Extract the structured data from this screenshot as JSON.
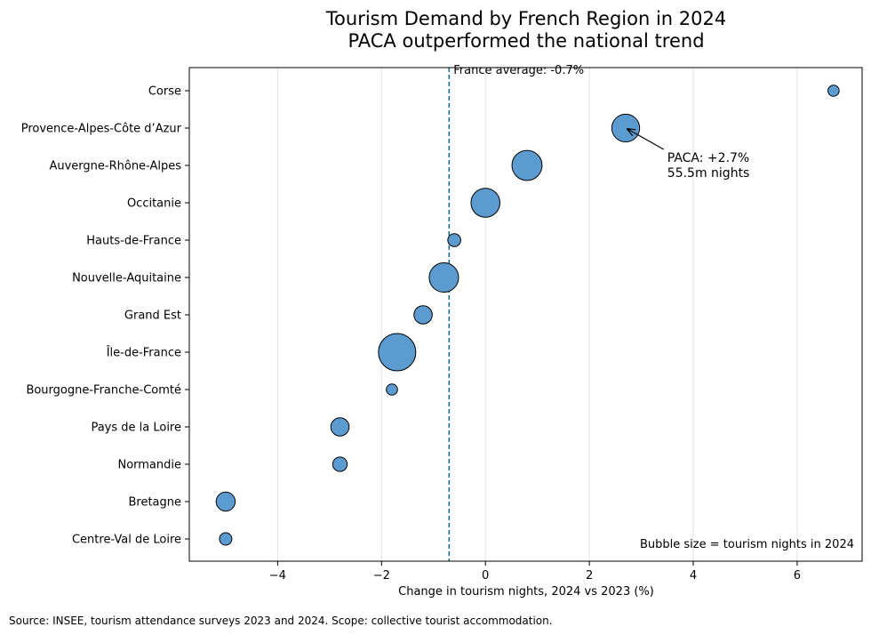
{
  "chart_data": {
    "type": "scatter",
    "title_line1": "Tourism Demand by French Region in 2024",
    "title_line2": "PACA outperformed the national trend",
    "xlabel": "Change in tourism nights, 2024 vs 2023 (%)",
    "xlim": [
      -5.7,
      7.25
    ],
    "xticks": [
      -4,
      -2,
      0,
      2,
      4,
      6
    ],
    "xtick_labels": [
      "−4",
      "−2",
      "0",
      "2",
      "4",
      "6"
    ],
    "grid": "vertical",
    "point_color": "#5b9bcf",
    "edge_color": "#000000",
    "size_note": "Bubble size = tourism nights in 2024",
    "points": [
      {
        "region": "Corse",
        "x": 6.7,
        "size": 9
      },
      {
        "region": "Provence-Alpes-Côte d’Azur",
        "x": 2.7,
        "size": 55.5
      },
      {
        "region": "Auvergne-Rhône-Alpes",
        "x": 0.8,
        "size": 65
      },
      {
        "region": "Occitanie",
        "x": 0.0,
        "size": 60
      },
      {
        "region": "Hauts-de-France",
        "x": -0.6,
        "size": 12
      },
      {
        "region": "Nouvelle-Aquitaine",
        "x": -0.8,
        "size": 62
      },
      {
        "region": "Grand Est",
        "x": -1.2,
        "size": 24
      },
      {
        "region": "Île-de-France",
        "x": -1.7,
        "size": 100
      },
      {
        "region": "Bourgogne-Franche-Comté",
        "x": -1.8,
        "size": 9
      },
      {
        "region": "Pays de la Loire",
        "x": -2.8,
        "size": 24
      },
      {
        "region": "Normandie",
        "x": -2.8,
        "size": 15
      },
      {
        "region": "Bretagne",
        "x": -5.0,
        "size": 26
      },
      {
        "region": "Centre-Val de Loire",
        "x": -5.0,
        "size": 11
      }
    ],
    "reference_line": {
      "x": -0.7,
      "label": "France average: -0.7%",
      "color": "#1f6f9f"
    },
    "callout": {
      "target_index": 1,
      "line1": "PACA: +2.7%",
      "line2": "55.5m nights"
    }
  },
  "source_note": "Source: INSEE, tourism attendance surveys 2023 and 2024. Scope: collective tourist accommodation."
}
